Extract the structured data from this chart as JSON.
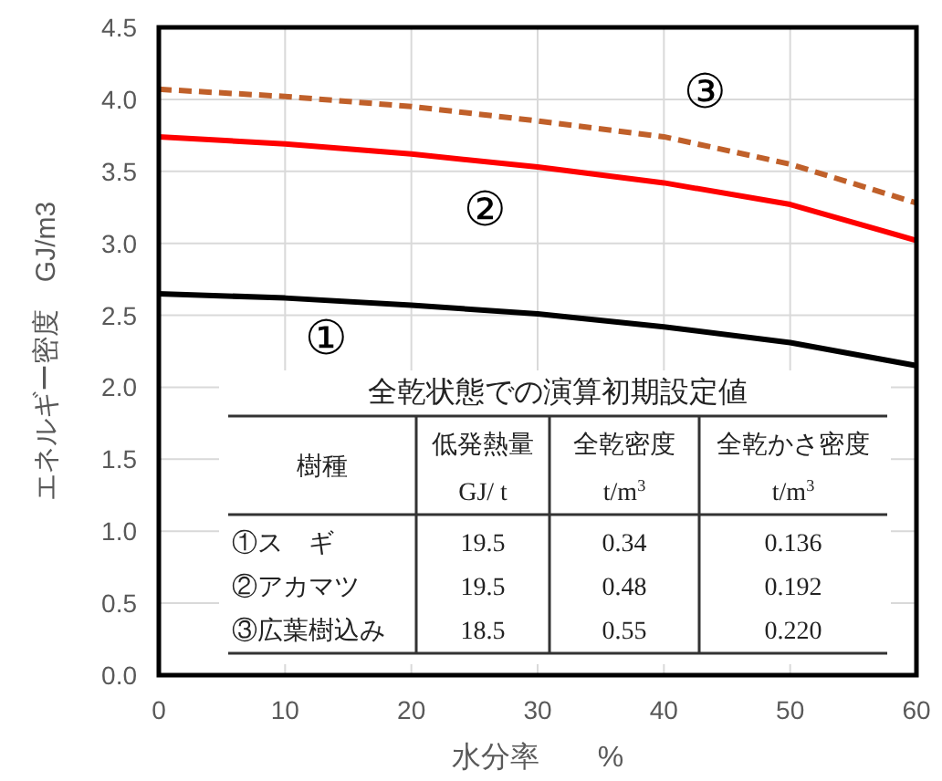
{
  "chart_data": {
    "type": "line",
    "xlabel": "水分率　　%",
    "ylabel": "エネルギー密度　GJ/m3",
    "x": [
      0,
      10,
      20,
      30,
      40,
      50,
      60
    ],
    "series": [
      {
        "name": "①",
        "color": "#000000",
        "line_style": "solid",
        "values": [
          2.65,
          2.62,
          2.57,
          2.51,
          2.42,
          2.31,
          2.15
        ]
      },
      {
        "name": "②",
        "color": "#ff0000",
        "line_style": "solid",
        "values": [
          3.74,
          3.69,
          3.62,
          3.53,
          3.42,
          3.27,
          3.02
        ]
      },
      {
        "name": "③",
        "color": "#c0602a",
        "line_style": "dashed",
        "values": [
          4.07,
          4.02,
          3.95,
          3.85,
          3.74,
          3.55,
          3.28
        ]
      }
    ],
    "xlim": [
      0,
      60
    ],
    "xticks": [
      0,
      10,
      20,
      30,
      40,
      50,
      60
    ],
    "ylim": [
      0,
      4.5
    ],
    "yticks": [
      {
        "value": 0,
        "label": "0.0"
      },
      0.5,
      {
        "value": 1,
        "label": "1.0"
      },
      1.5,
      {
        "value": 2,
        "label": "2.0"
      },
      2.5,
      {
        "value": 3,
        "label": "3.0"
      },
      3.5,
      {
        "value": 4,
        "label": "4.0"
      },
      4.5
    ],
    "grid": true,
    "annotations": [
      "全乾状態での演算初期設定値",
      "樹種",
      "低発熱量",
      "全乾密度",
      "全乾かさ密度",
      "GJ/ t",
      "t/m$^{3}$",
      "t/m$^{3}$",
      "①ス　ギ",
      "19.5",
      "0.34",
      "0.136",
      "②アカマツ",
      "19.5",
      "0.48",
      "0.192",
      "③広葉樹込み",
      "18.5",
      "0.55",
      "0.220"
    ]
  }
}
